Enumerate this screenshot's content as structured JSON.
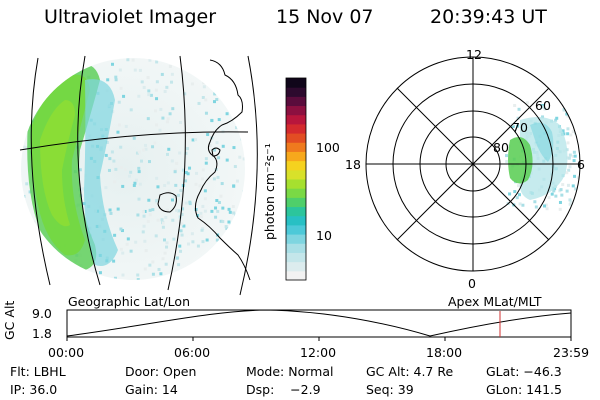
{
  "header": {
    "instrument": "Ultraviolet Imager",
    "date": "15 Nov 07",
    "time": "20:39:43 UT"
  },
  "colorbar": {
    "unit_label": "photon cm⁻²s⁻¹",
    "ticks": [
      "100",
      "10"
    ],
    "colors": [
      "#f2f2f2",
      "#dcecee",
      "#c4e6ea",
      "#a9dfe6",
      "#7fd5e0",
      "#4dc9d8",
      "#28c0c4",
      "#2cc59c",
      "#4fcf6a",
      "#7ad945",
      "#a6e02f",
      "#d8e12a",
      "#f5d21f",
      "#f7a81c",
      "#ef7a1e",
      "#e24d23",
      "#d42a2e",
      "#b8163c",
      "#8c1040",
      "#5a0c3c",
      "#2d0a2e",
      "#10061a"
    ]
  },
  "left_panel": {
    "label": "Geographic Lat/Lon"
  },
  "right_panel": {
    "label": "Apex MLat/MLT",
    "mlt_labels": {
      "top": "12",
      "left": "18",
      "right": "6",
      "bottom": "0"
    },
    "lat_labels": [
      "60",
      "70",
      "80"
    ]
  },
  "altitude_plot": {
    "axis_label": "GC Alt",
    "y_ticks": [
      "9.0",
      "1.8"
    ],
    "x_ticks": [
      "00:00",
      "06:00",
      "12:00",
      "18:00",
      "23:59"
    ],
    "marker_color": "#d03030"
  },
  "footer": {
    "flt": "Flt: LBHL",
    "door": "Door: Open",
    "mode": "Mode: Normal",
    "gc_alt": "GC Alt: 4.7 Re",
    "glat": "GLat: −46.3",
    "ip": "IP: 36.0",
    "gain": "Gain: 14",
    "dsp": "Dsp:    −2.9",
    "seq": "Seq: 39",
    "glon": "GLon: 141.5"
  }
}
